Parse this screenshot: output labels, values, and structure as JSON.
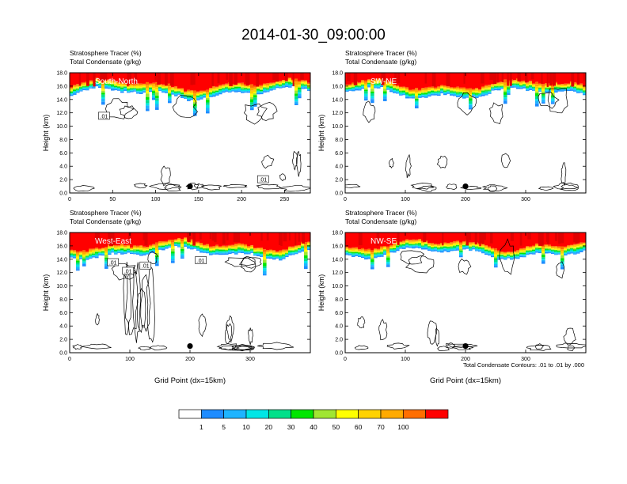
{
  "figure": {
    "title": "2014-01-30_09:00:00",
    "footnote": "Total Condensate Contours: .01 to .01 by .000",
    "colorbar_labels": [
      "1",
      "5",
      "10",
      "20",
      "30",
      "40",
      "50",
      "60",
      "70",
      "100"
    ],
    "colorbar_colors": [
      "#ffffff",
      "#1e8cff",
      "#1eb4ff",
      "#00e6e6",
      "#00e08a",
      "#00e600",
      "#a0e632",
      "#ffff00",
      "#ffd200",
      "#ffaa00",
      "#ff6e00",
      "#ff0000"
    ]
  },
  "chart_data": [
    {
      "type": "heatmap",
      "panel_label": "South-North",
      "subtitle1": "Stratosphere Tracer   (%)",
      "subtitle2": "Total Condensate   (g/kg)",
      "ylabel": "Height (km)",
      "xlabel": "",
      "xlim": [
        0,
        280
      ],
      "ylim": [
        0,
        18
      ],
      "xticks": [
        "0",
        "50",
        "100",
        "150",
        "200",
        "250"
      ],
      "yticks": [
        "0.0",
        "2.0",
        "4.0",
        "6.0",
        "8.0",
        "10.0",
        "12.0",
        "14.0",
        "16.0",
        "18.0"
      ],
      "marker": {
        "x": 140,
        "y": 1.0
      },
      "contour_labels": [
        {
          "text": ".01",
          "x": 40,
          "y": 11.5
        },
        {
          "text": ".01",
          "x": 225,
          "y": 2.0
        }
      ]
    },
    {
      "type": "heatmap",
      "panel_label": "SW-NE",
      "subtitle1": "Stratosphere Tracer   (%)",
      "subtitle2": "Total Condensate   (g/kg)",
      "ylabel": "Height (km)",
      "xlabel": "",
      "xlim": [
        0,
        400
      ],
      "ylim": [
        0,
        18
      ],
      "xticks": [
        "0",
        "100",
        "200",
        "300"
      ],
      "yticks": [
        "0.0",
        "2.0",
        "4.0",
        "6.0",
        "8.0",
        "10.0",
        "12.0",
        "14.0",
        "16.0",
        "18.0"
      ],
      "marker": {
        "x": 200,
        "y": 1.0
      },
      "contour_labels": []
    },
    {
      "type": "heatmap",
      "panel_label": "West-East",
      "subtitle1": "Stratosphere Tracer   (%)",
      "subtitle2": "Total Condensate   (g/kg)",
      "ylabel": "Height (km)",
      "xlabel": "Grid Point (dx=15km)",
      "xlim": [
        0,
        400
      ],
      "ylim": [
        0,
        18
      ],
      "xticks": [
        "0",
        "100",
        "200",
        "300"
      ],
      "yticks": [
        "0.0",
        "2.0",
        "4.0",
        "6.0",
        "8.0",
        "10.0",
        "12.0",
        "14.0",
        "16.0",
        "18.0"
      ],
      "marker": {
        "x": 200,
        "y": 1.0
      },
      "contour_labels": [
        {
          "text": ".01",
          "x": 72,
          "y": 13.5
        },
        {
          "text": ".01",
          "x": 97,
          "y": 12.2
        },
        {
          "text": ".01",
          "x": 126,
          "y": 13.0
        },
        {
          "text": ".01",
          "x": 218,
          "y": 13.8
        }
      ]
    },
    {
      "type": "heatmap",
      "panel_label": "NW-SE",
      "subtitle1": "Stratosphere Tracer   (%)",
      "subtitle2": "Total Condensate   (g/kg)",
      "ylabel": "Height (km)",
      "xlabel": "Grid Point (dx=15km)",
      "xlim": [
        0,
        400
      ],
      "ylim": [
        0,
        18
      ],
      "xticks": [
        "0",
        "100",
        "200",
        "300"
      ],
      "yticks": [
        "0.0",
        "2.0",
        "4.0",
        "6.0",
        "8.0",
        "10.0",
        "12.0",
        "14.0",
        "16.0",
        "18.0"
      ],
      "marker": {
        "x": 200,
        "y": 1.0
      },
      "contour_labels": []
    }
  ]
}
